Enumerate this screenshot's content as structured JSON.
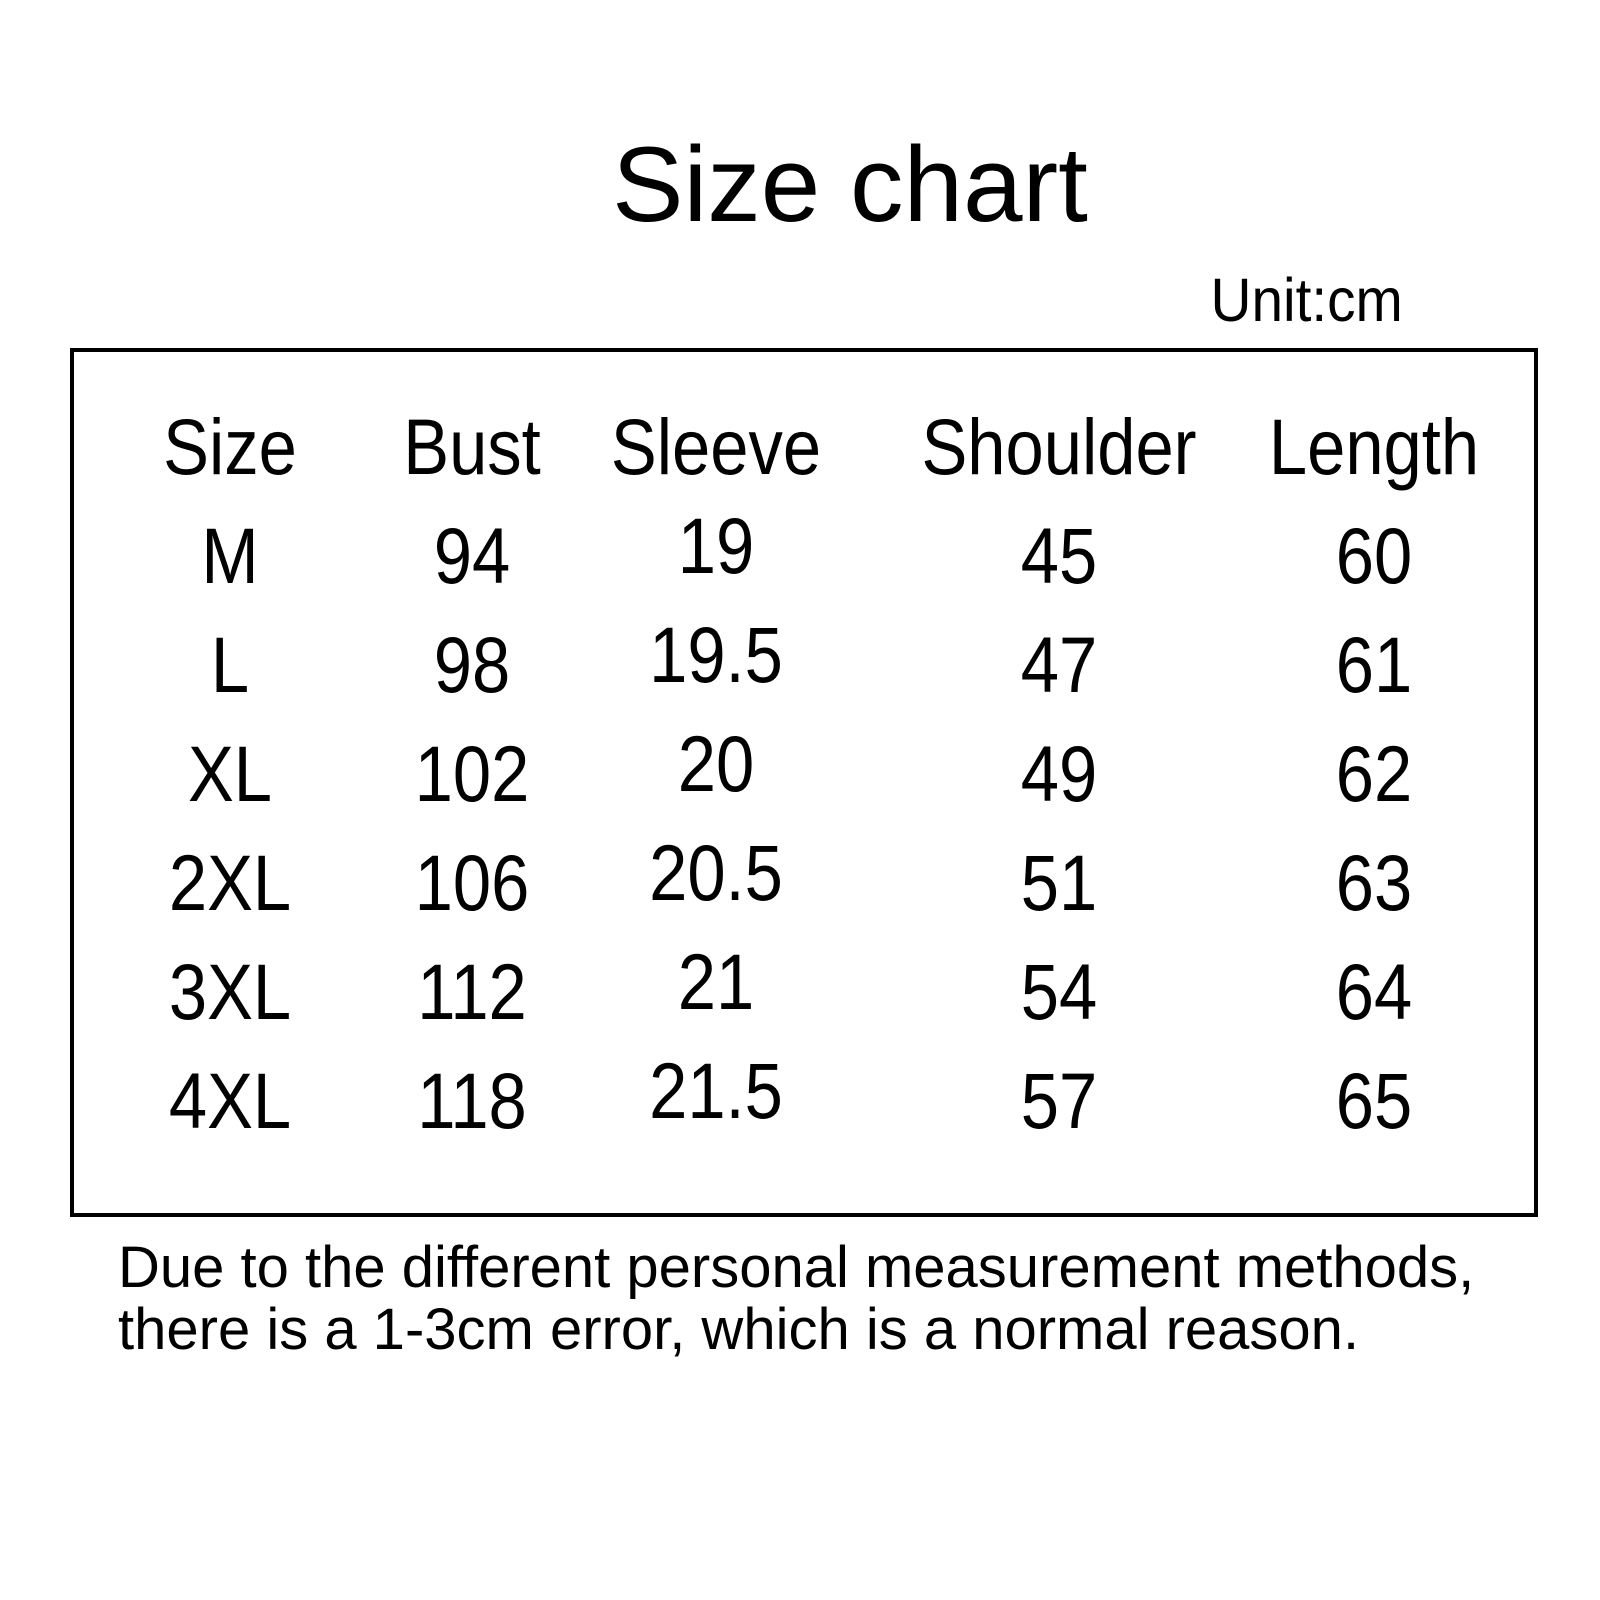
{
  "page": {
    "title": "Size chart",
    "unit_label": "Unit:cm",
    "note_lines": [
      "Due to the different personal measurement methods,",
      "there is a 1-3cm error, which is a normal reason."
    ]
  },
  "colors": {
    "background": "#ffffff",
    "text": "#000000",
    "table_border": "#000000"
  },
  "chart_data": {
    "type": "table",
    "title": "Size chart",
    "unit": "cm",
    "columns": [
      "Size",
      "Bust",
      "Sleeve",
      "Shoulder",
      "Length"
    ],
    "rows": [
      {
        "size": "M",
        "bust": 94,
        "sleeve": 19,
        "shoulder": 45,
        "length": 60
      },
      {
        "size": "L",
        "bust": 98,
        "sleeve": 19.5,
        "shoulder": 47,
        "length": 61
      },
      {
        "size": "XL",
        "bust": 102,
        "sleeve": 20,
        "shoulder": 49,
        "length": 62
      },
      {
        "size": "2XL",
        "bust": 106,
        "sleeve": 20.5,
        "shoulder": 51,
        "length": 63
      },
      {
        "size": "3XL",
        "bust": 112,
        "sleeve": 21,
        "shoulder": 54,
        "length": 64
      },
      {
        "size": "4XL",
        "bust": 118,
        "sleeve": 21.5,
        "shoulder": 57,
        "length": 65
      }
    ],
    "note": "Due to the different personal measurement methods, there is a 1-3cm error, which is a normal reason."
  }
}
